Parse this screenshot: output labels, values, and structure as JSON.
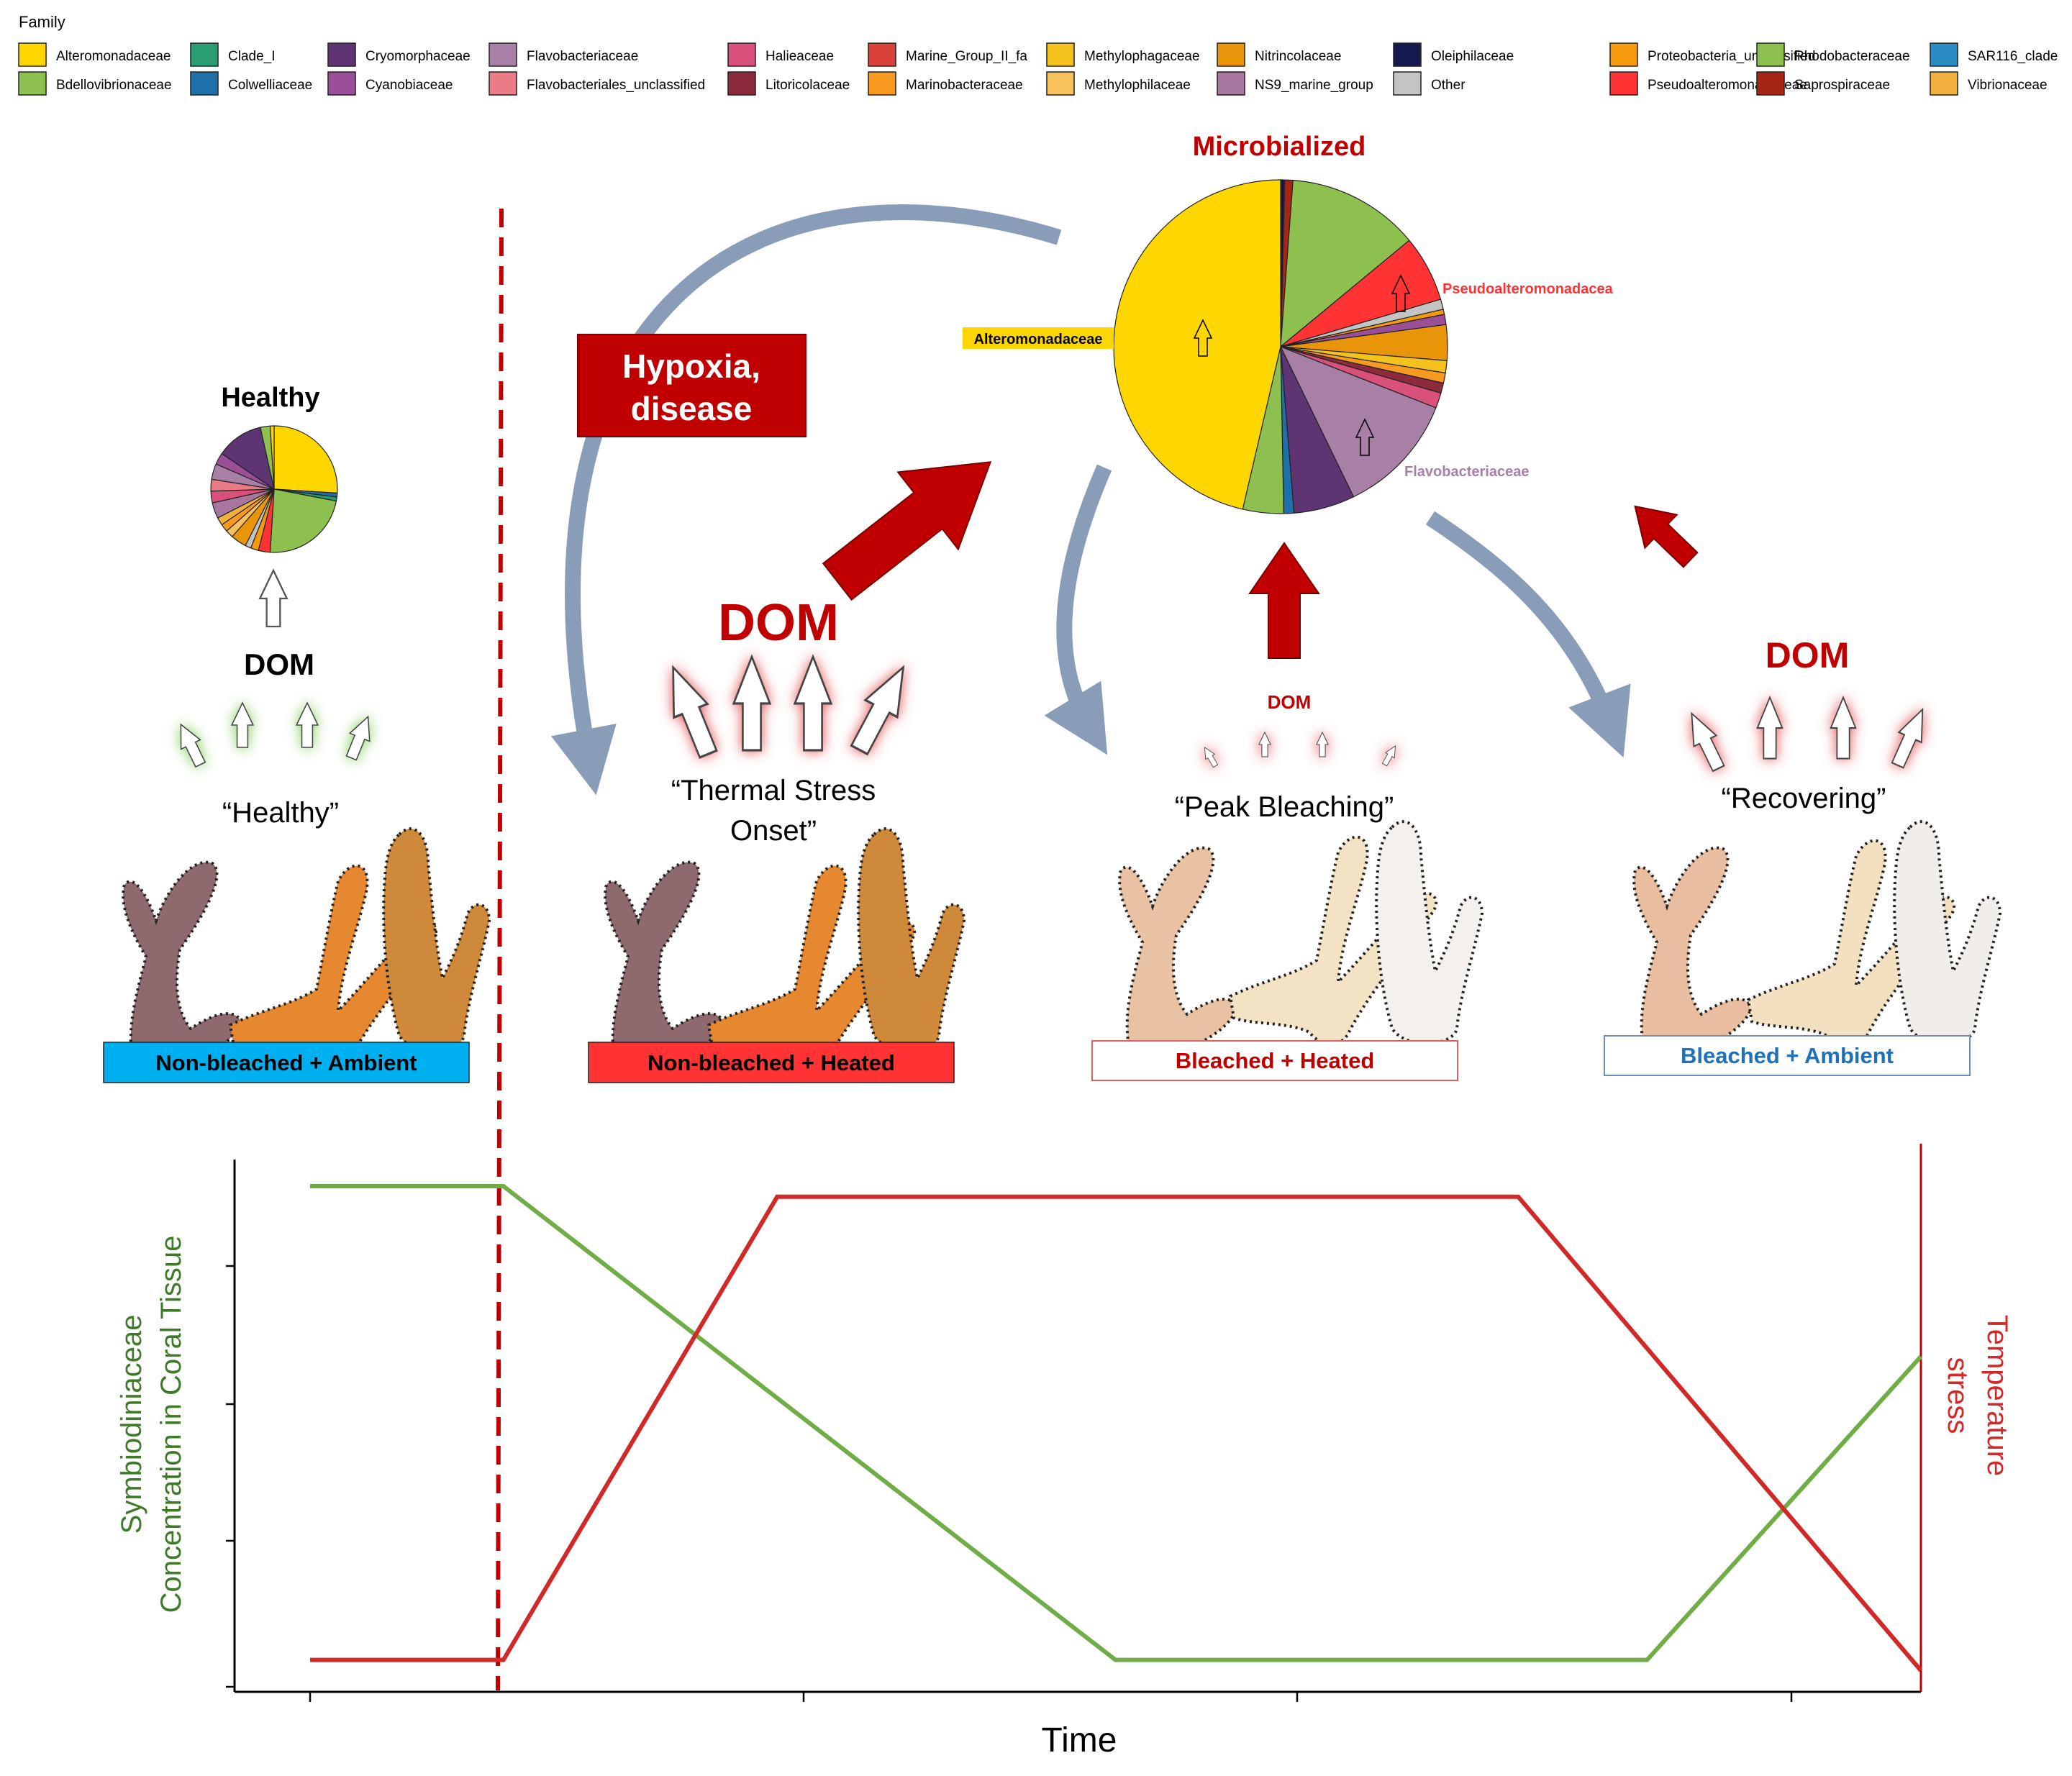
{
  "legend": {
    "title": "Family",
    "items": [
      {
        "label": "Alteromonadaceae",
        "color": "#FFD700"
      },
      {
        "label": "Bdellovibrionaceae",
        "color": "#8DC04E"
      },
      {
        "label": "Clade_I",
        "color": "#2A9D73"
      },
      {
        "label": "Colwelliaceae",
        "color": "#1F6FA8"
      },
      {
        "label": "Cryomorphaceae",
        "color": "#5E3472"
      },
      {
        "label": "Cyanobiaceae",
        "color": "#9A4F98"
      },
      {
        "label": "Flavobacteriaceae",
        "color": "#A87FA5"
      },
      {
        "label": "Flavobacteriales_unclassified",
        "color": "#E97B87"
      },
      {
        "label": "Halieaceae",
        "color": "#D9507A"
      },
      {
        "label": "Litoricolaceae",
        "color": "#8C2B3B"
      },
      {
        "label": "Marine_Group_II_fa",
        "color": "#D9423A"
      },
      {
        "label": "Marinobacteraceae",
        "color": "#F79A1F"
      },
      {
        "label": "Methylophagaceae",
        "color": "#F4C21C"
      },
      {
        "label": "Methylophilaceae",
        "color": "#F7C15B"
      },
      {
        "label": "Nitrincolaceae",
        "color": "#E8950A"
      },
      {
        "label": "NS9_marine_group",
        "color": "#A8779F"
      },
      {
        "label": "Oleiphilaceae",
        "color": "#151A4F"
      },
      {
        "label": "Other",
        "color": "#C4C4C4"
      },
      {
        "label": "Proteobacteria_unclassified",
        "color": "#F59A0C"
      },
      {
        "label": "Pseudoalteromonadaceae",
        "color": "#FF3333"
      },
      {
        "label": "Rhodobacteraceae",
        "color": "#8DC04E"
      },
      {
        "label": "Saprospiraceae",
        "color": "#A52615"
      },
      {
        "label": "SAR116_clade",
        "color": "#2B8CC4"
      },
      {
        "label": "Vibrionaceae",
        "color": "#F2B13F"
      }
    ]
  },
  "pies": {
    "healthy": {
      "title": "Healthy",
      "slices": [
        {
          "family": "Alteromonadaceae",
          "value": 26,
          "color": "#FFD700"
        },
        {
          "family": "Colwelliaceae",
          "value": 1,
          "color": "#1F6FA8"
        },
        {
          "family": "Clade_I",
          "value": 1,
          "color": "#2A9D73"
        },
        {
          "family": "Rhodobacteraceae",
          "value": 23,
          "color": "#8DC04E"
        },
        {
          "family": "Pseudoalteromonadaceae",
          "value": 3,
          "color": "#FF3333"
        },
        {
          "family": "Proteobacteria_unclassified",
          "value": 2,
          "color": "#F59A0C"
        },
        {
          "family": "Other",
          "value": 1.5,
          "color": "#C4C4C4"
        },
        {
          "family": "Nitrincolaceae",
          "value": 4,
          "color": "#E8950A"
        },
        {
          "family": "Methylophilaceae",
          "value": 2,
          "color": "#F7C15B"
        },
        {
          "family": "Marinobacteraceae",
          "value": 2,
          "color": "#F79A1F"
        },
        {
          "family": "Vibrionaceae",
          "value": 2,
          "color": "#F2B13F"
        },
        {
          "family": "NS9_marine_group",
          "value": 4,
          "color": "#A8779F"
        },
        {
          "family": "Halieaceae",
          "value": 3,
          "color": "#D9507A"
        },
        {
          "family": "Flavobacteriales_unclassified",
          "value": 3,
          "color": "#E97B87"
        },
        {
          "family": "Flavobacteriaceae",
          "value": 4,
          "color": "#A87FA5"
        },
        {
          "family": "Cyanobiaceae",
          "value": 3,
          "color": "#9A4F98"
        },
        {
          "family": "Cryomorphaceae",
          "value": 12,
          "color": "#5E3472"
        },
        {
          "family": "Bdellovibrionaceae",
          "value": 2.5,
          "color": "#8DC04E"
        },
        {
          "family": "Alteromonadaceae",
          "value": 1,
          "color": "#FFD700"
        }
      ]
    },
    "microbialized": {
      "title": "Microbialized",
      "labels": [
        "Pseudoalteromonadacea",
        "Alteromonadaceae",
        "Flavobacteriaceae"
      ],
      "slices": [
        {
          "family": "Oleiphilaceae",
          "value": 0.4,
          "color": "#151A4F"
        },
        {
          "family": "Saprospiraceae",
          "value": 0.8,
          "color": "#A52615"
        },
        {
          "family": "Rhodobacteraceae",
          "value": 13,
          "color": "#8DC04E"
        },
        {
          "family": "Pseudoalteromonadaceae",
          "value": 6.5,
          "color": "#FF3333"
        },
        {
          "family": "Other",
          "value": 1,
          "color": "#C4C4C4"
        },
        {
          "family": "Proteobacteria_unclassified",
          "value": 0.5,
          "color": "#F59A0C"
        },
        {
          "family": "Cyanobiaceae",
          "value": 1,
          "color": "#9A4F98"
        },
        {
          "family": "Nitrincolaceae",
          "value": 3.5,
          "color": "#E8950A"
        },
        {
          "family": "Methylophagaceae",
          "value": 1.2,
          "color": "#F4C21C"
        },
        {
          "family": "Marinobacteraceae",
          "value": 1,
          "color": "#F79A1F"
        },
        {
          "family": "Litoricolaceae",
          "value": 1,
          "color": "#8C2B3B"
        },
        {
          "family": "Halieaceae",
          "value": 1.5,
          "color": "#D9507A"
        },
        {
          "family": "Flavobacteriaceae",
          "value": 12,
          "color": "#A87FA5"
        },
        {
          "family": "Cryomorphaceae",
          "value": 6,
          "color": "#5E3472"
        },
        {
          "family": "Colwelliaceae",
          "value": 1,
          "color": "#1F6FA8"
        },
        {
          "family": "Bdellovibrionaceae",
          "value": 4,
          "color": "#8DC04E"
        },
        {
          "family": "Alteromonadaceae",
          "value": 47,
          "color": "#FFD700"
        }
      ]
    }
  },
  "flow": {
    "hypoxia_label": "Hypoxia,\ndisease",
    "dom": "DOM",
    "stages": [
      {
        "title": "“Healthy”",
        "condition": "Non-bleached + Ambient"
      },
      {
        "title": "“Thermal Stress\nOnset”",
        "condition": "Non-bleached + Heated"
      },
      {
        "title": "“Peak Bleaching”",
        "condition": "Bleached + Heated"
      },
      {
        "title": "“Recovering”",
        "condition": "Bleached + Ambient"
      }
    ]
  },
  "colors": {
    "red": "#C00000",
    "grey_arrow": "#8A9DB8",
    "blue_box": "#00B0F0",
    "red_box": "#FF3333",
    "text_red": "#C00000",
    "text_blue": "#2070B8",
    "symbio_line": "#70AD47",
    "temp_line": "#D12828"
  },
  "chart_data": {
    "type": "line",
    "xlabel": "Time",
    "ylabel": "Symbiodiniaceae\nConcentration in Coral Tissue",
    "y2label": "Temperature\nstress",
    "series": [
      {
        "name": "Symbiodiniaceae",
        "points": [
          [
            0,
            0.95
          ],
          [
            0.12,
            0.95
          ],
          [
            0.5,
            0.06
          ],
          [
            0.83,
            0.06
          ],
          [
            1,
            0.63
          ]
        ]
      },
      {
        "name": "Temperature stress",
        "points": [
          [
            0,
            0.06
          ],
          [
            0.12,
            0.06
          ],
          [
            0.29,
            0.93
          ],
          [
            0.75,
            0.93
          ],
          [
            1,
            0.04
          ]
        ]
      }
    ]
  }
}
